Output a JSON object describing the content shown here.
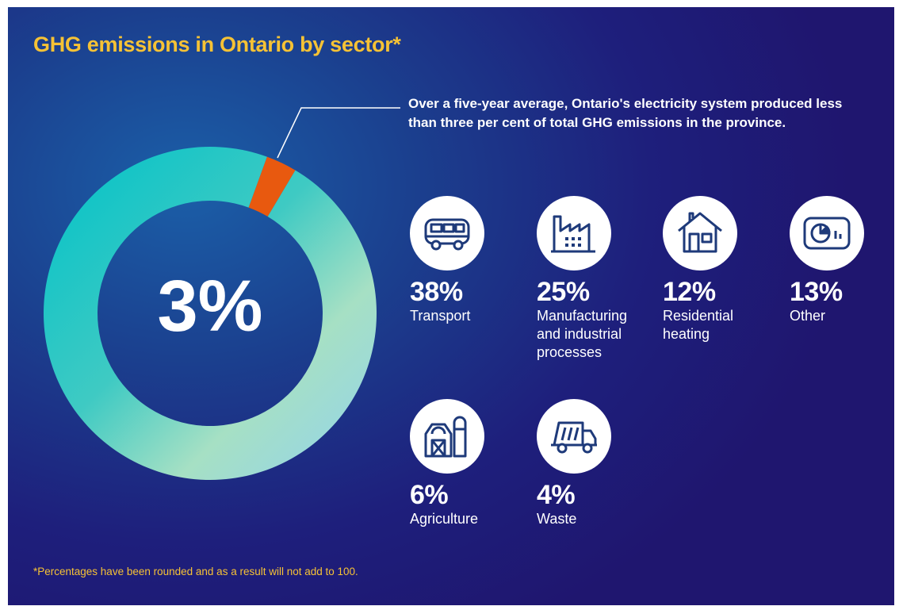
{
  "title": "GHG emissions in Ontario by sector*",
  "callout": "Over a five-year average, Ontario's electricity system produced less than three per cent of total GHG emissions in the province.",
  "footnote": "*Percentages have been rounded and as a result will not add to 100.",
  "chart_data": {
    "type": "pie",
    "subtype": "donut",
    "center_label": "3%",
    "values": [
      3,
      97
    ],
    "highlight_color": "#e8590f",
    "ring_colors": [
      "#00c2c8",
      "#9bdcc0",
      "#8fd0ef",
      "#1cc4cf"
    ]
  },
  "sectors": [
    {
      "icon": "bus-icon",
      "value": "38%",
      "label_lines": [
        "Transport"
      ]
    },
    {
      "icon": "factory-icon",
      "value": "25%",
      "label_lines": [
        "Manufacturing",
        "and industrial",
        "processes"
      ]
    },
    {
      "icon": "house-icon",
      "value": "12%",
      "label_lines": [
        "Residential",
        "heating"
      ]
    },
    {
      "icon": "appliance-icon",
      "value": "13%",
      "label_lines": [
        "Other"
      ]
    },
    {
      "icon": "barn-icon",
      "value": "6%",
      "label_lines": [
        "Agriculture"
      ]
    },
    {
      "icon": "garbage-truck-icon",
      "value": "4%",
      "label_lines": [
        "Waste"
      ]
    }
  ],
  "colors": {
    "title": "#f6c235",
    "icon_stroke": "#1e3a7a"
  }
}
